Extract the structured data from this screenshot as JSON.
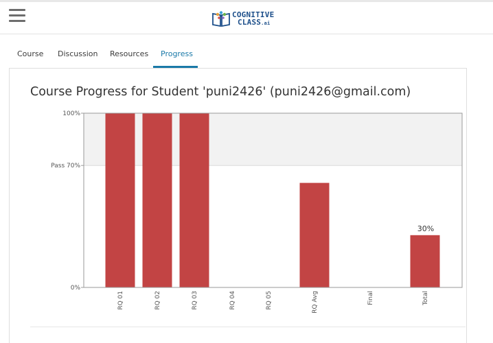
{
  "header": {
    "menu_icon": "hamburger-menu-icon",
    "logo": {
      "line1": "COGNITIVE",
      "line2": "CLASS",
      "suffix": ".ai",
      "icon": "book-brain-icon"
    }
  },
  "tabs": [
    {
      "label": "Course",
      "active": false
    },
    {
      "label": "Discussion",
      "active": false
    },
    {
      "label": "Resources",
      "active": false
    },
    {
      "label": "Progress",
      "active": true
    }
  ],
  "main": {
    "title": "Course Progress for Student 'puni2426' (puni2426@gmail.com)"
  },
  "colors": {
    "bar": "#c24444",
    "accent": "#1a79a8",
    "pass_band": "#f2f2f2"
  },
  "chart_data": {
    "type": "bar",
    "categories": [
      "RQ 01",
      "RQ 02",
      "RQ 03",
      "RQ 04",
      "RQ 05",
      "RQ Avg",
      "Final",
      "Total"
    ],
    "values": [
      100,
      100,
      100,
      0,
      0,
      60,
      0,
      30
    ],
    "y_ticks": [
      {
        "value": 0,
        "label": "0%"
      },
      {
        "value": 70,
        "label": "Pass 70%"
      },
      {
        "value": 100,
        "label": "100%"
      }
    ],
    "data_labels": [
      {
        "category": "Total",
        "label": "30%"
      }
    ],
    "ylim": [
      0,
      100
    ],
    "pass_threshold": 70,
    "title": "",
    "xlabel": "",
    "ylabel": ""
  }
}
